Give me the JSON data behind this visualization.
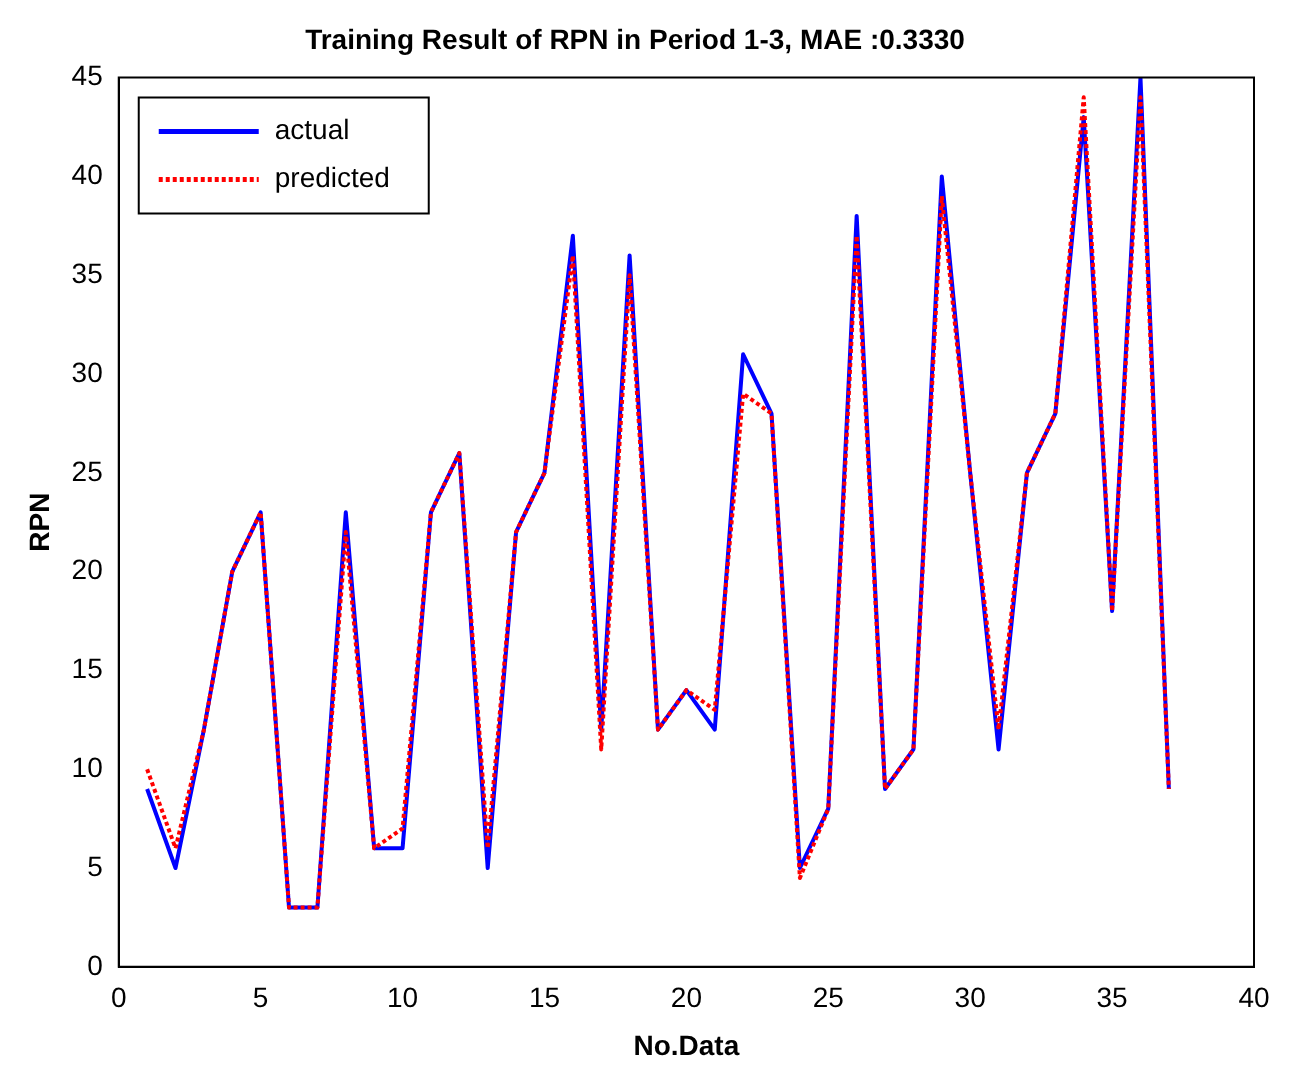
{
  "chart_data": {
    "type": "line",
    "title": "Training Result of RPN in Period 1-3, MAE :0.3330",
    "xlabel": "No.Data",
    "ylabel": "RPN",
    "x": [
      1,
      2,
      3,
      4,
      5,
      6,
      7,
      8,
      9,
      10,
      11,
      12,
      13,
      14,
      15,
      16,
      17,
      18,
      19,
      20,
      21,
      22,
      23,
      24,
      25,
      26,
      27,
      28,
      29,
      30,
      31,
      32,
      33,
      34,
      35,
      36,
      37
    ],
    "series": [
      {
        "name": "actual",
        "color": "#0000ff",
        "line_style": "solid",
        "values": [
          9,
          5,
          12,
          20,
          23,
          3,
          3,
          23,
          6,
          6,
          23,
          26,
          5,
          22,
          25,
          37,
          12,
          36,
          12,
          14,
          12,
          31,
          28,
          5,
          8,
          38,
          9,
          11,
          40,
          25,
          11,
          25,
          28,
          43,
          18,
          45,
          9
        ]
      },
      {
        "name": "predicted",
        "color": "#ff0000",
        "line_style": "dotted",
        "values": [
          10,
          6,
          12,
          20,
          23,
          3,
          3,
          22,
          6,
          7,
          23,
          26,
          6,
          22,
          25,
          36,
          11,
          35,
          12,
          14,
          13,
          29,
          28,
          4.5,
          8,
          37,
          9,
          11,
          39,
          25,
          12,
          25,
          28,
          44,
          18,
          44,
          9
        ]
      }
    ],
    "xlim": [
      0,
      40
    ],
    "xticks": [
      0,
      5,
      10,
      15,
      20,
      25,
      30,
      35,
      40
    ],
    "ylim": [
      0,
      45
    ],
    "yticks": [
      0,
      5,
      10,
      15,
      20,
      25,
      30,
      35,
      40,
      45
    ],
    "grid": false,
    "legend": "top left",
    "marker": "none"
  }
}
